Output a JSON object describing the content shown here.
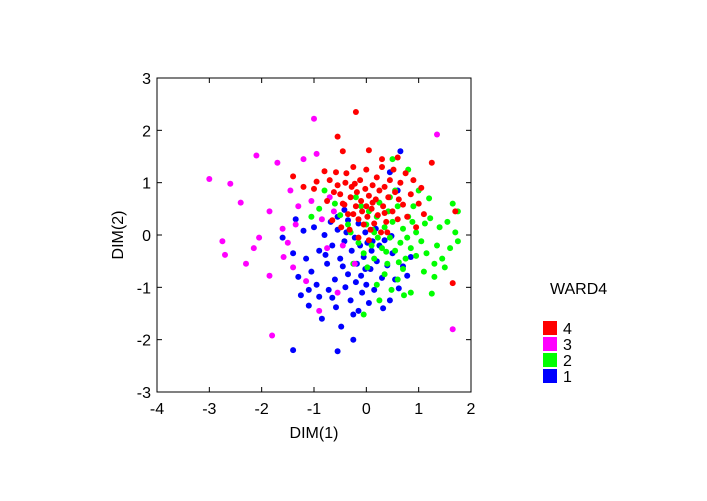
{
  "chart_data": {
    "type": "scatter",
    "xlabel": "DIM(1)",
    "ylabel": "DIM(2)",
    "xlim": [
      -4,
      2
    ],
    "ylim": [
      -3,
      3
    ],
    "xticks": [
      "-4",
      "-3",
      "-2",
      "-1",
      "0",
      "1",
      "2"
    ],
    "yticks": [
      "-3",
      "-2",
      "-1",
      "0",
      "1",
      "2",
      "3"
    ],
    "grid": false,
    "legend": {
      "title": "WARD4",
      "placement": "right",
      "entries": [
        {
          "label": "4",
          "color": "#ff0000"
        },
        {
          "label": "3",
          "color": "#ff00ff"
        },
        {
          "label": "2",
          "color": "#00ff00"
        },
        {
          "label": "1",
          "color": "#0000ff"
        }
      ]
    },
    "series": [
      {
        "name": "4",
        "color": "#ff0000",
        "points": [
          [
            -0.2,
            2.35
          ],
          [
            -0.55,
            1.88
          ],
          [
            -0.45,
            1.6
          ],
          [
            0.05,
            1.62
          ],
          [
            0.3,
            1.45
          ],
          [
            0.6,
            1.48
          ],
          [
            1.25,
            1.38
          ],
          [
            -1.4,
            1.12
          ],
          [
            -1.2,
            0.92
          ],
          [
            -1.0,
            0.88
          ],
          [
            -0.95,
            1.02
          ],
          [
            -0.8,
            1.22
          ],
          [
            -0.75,
            0.65
          ],
          [
            -0.7,
            1.05
          ],
          [
            -0.62,
            0.82
          ],
          [
            -0.58,
            1.2
          ],
          [
            -0.55,
            0.95
          ],
          [
            -0.5,
            0.78
          ],
          [
            -0.45,
            0.6
          ],
          [
            -0.4,
            1.0
          ],
          [
            -0.38,
            1.18
          ],
          [
            -0.35,
            0.4
          ],
          [
            -0.3,
            0.72
          ],
          [
            -0.28,
            0.92
          ],
          [
            -0.25,
            1.3
          ],
          [
            -0.2,
            0.55
          ],
          [
            -0.18,
            0.82
          ],
          [
            -0.15,
            0.3
          ],
          [
            -0.12,
            1.05
          ],
          [
            -0.1,
            0.65
          ],
          [
            -0.08,
            0.45
          ],
          [
            -0.05,
            0.2
          ],
          [
            -0.02,
            0.88
          ],
          [
            0.0,
            0.55
          ],
          [
            0.0,
            1.25
          ],
          [
            0.02,
            0.35
          ],
          [
            0.05,
            0.75
          ],
          [
            0.08,
            0.1
          ],
          [
            0.1,
            0.5
          ],
          [
            0.12,
            0.95
          ],
          [
            0.15,
            0.22
          ],
          [
            0.18,
            0.68
          ],
          [
            0.2,
            1.1
          ],
          [
            0.22,
            0.38
          ],
          [
            0.25,
            0.85
          ],
          [
            0.28,
            0.05
          ],
          [
            0.3,
            1.3
          ],
          [
            0.32,
            0.55
          ],
          [
            0.35,
            0.92
          ],
          [
            0.38,
            0.25
          ],
          [
            0.42,
            0.72
          ],
          [
            0.45,
            1.05
          ],
          [
            0.5,
            0.45
          ],
          [
            0.52,
            1.25
          ],
          [
            0.55,
            0.82
          ],
          [
            0.6,
            0.3
          ],
          [
            0.65,
            1.0
          ],
          [
            0.7,
            0.58
          ],
          [
            0.75,
            1.18
          ],
          [
            0.78,
            0.35
          ],
          [
            0.85,
            0.78
          ],
          [
            0.9,
            1.05
          ],
          [
            0.95,
            0.15
          ],
          [
            1.0,
            0.6
          ],
          [
            1.05,
            0.9
          ],
          [
            1.1,
            0.4
          ],
          [
            -0.65,
            0.28
          ],
          [
            -0.48,
            0.15
          ],
          [
            -0.32,
            0.1
          ],
          [
            -0.15,
            -0.05
          ],
          [
            0.05,
            -0.1
          ],
          [
            0.4,
            0.05
          ],
          [
            -0.25,
            0.4
          ],
          [
            0.12,
            0.62
          ],
          [
            0.35,
            0.42
          ],
          [
            1.7,
            0.45
          ],
          [
            1.65,
            -0.92
          ],
          [
            -0.42,
            0.58
          ],
          [
            -0.22,
            0.98
          ],
          [
            0.62,
            0.68
          ]
        ]
      },
      {
        "name": "3",
        "color": "#ff00ff",
        "points": [
          [
            -3.0,
            1.07
          ],
          [
            -2.6,
            0.98
          ],
          [
            -2.75,
            -0.12
          ],
          [
            -2.7,
            -0.38
          ],
          [
            -2.4,
            0.62
          ],
          [
            -2.3,
            -0.55
          ],
          [
            -2.15,
            -0.25
          ],
          [
            -2.1,
            1.52
          ],
          [
            -2.05,
            -0.05
          ],
          [
            -1.85,
            0.45
          ],
          [
            -1.85,
            -0.78
          ],
          [
            -1.8,
            -1.92
          ],
          [
            -1.7,
            1.38
          ],
          [
            -1.6,
            0.12
          ],
          [
            -1.58,
            -0.42
          ],
          [
            -1.5,
            -0.15
          ],
          [
            -1.45,
            0.85
          ],
          [
            -1.4,
            -0.62
          ],
          [
            -1.35,
            0.2
          ],
          [
            -1.3,
            0.55
          ],
          [
            -1.2,
            1.45
          ],
          [
            -1.0,
            2.22
          ],
          [
            -0.95,
            1.55
          ],
          [
            -0.9,
            -1.45
          ],
          [
            -1.05,
            0.65
          ],
          [
            -0.85,
            0.3
          ],
          [
            -0.75,
            -0.25
          ],
          [
            -0.7,
            0.72
          ],
          [
            -0.55,
            -1.1
          ],
          [
            -0.45,
            -0.2
          ],
          [
            -0.22,
            -0.55
          ],
          [
            1.35,
            1.92
          ],
          [
            1.65,
            -1.8
          ],
          [
            -1.15,
            -0.88
          ],
          [
            -0.62,
            0.45
          ]
        ]
      },
      {
        "name": "2",
        "color": "#00ff00",
        "points": [
          [
            0.5,
            1.45
          ],
          [
            0.8,
            1.25
          ],
          [
            0.55,
            0.85
          ],
          [
            1.2,
            0.7
          ],
          [
            1.65,
            0.6
          ],
          [
            1.75,
            0.45
          ],
          [
            1.55,
            0.25
          ],
          [
            1.4,
            0.15
          ],
          [
            1.7,
            0.05
          ],
          [
            1.75,
            -0.12
          ],
          [
            1.6,
            -0.25
          ],
          [
            1.45,
            -0.45
          ],
          [
            1.3,
            -0.55
          ],
          [
            1.15,
            -0.35
          ],
          [
            1.05,
            -0.12
          ],
          [
            0.95,
            0.05
          ],
          [
            0.85,
            -0.25
          ],
          [
            0.8,
            0.35
          ],
          [
            0.75,
            -0.45
          ],
          [
            0.7,
            0.12
          ],
          [
            0.65,
            -0.15
          ],
          [
            0.6,
            0.55
          ],
          [
            0.55,
            -0.3
          ],
          [
            0.5,
            0.25
          ],
          [
            0.45,
            -0.05
          ],
          [
            0.42,
            0.45
          ],
          [
            0.4,
            -0.55
          ],
          [
            0.35,
            0.15
          ],
          [
            0.3,
            -0.25
          ],
          [
            0.25,
            0.62
          ],
          [
            0.22,
            -0.05
          ],
          [
            0.2,
            0.35
          ],
          [
            0.15,
            -0.45
          ],
          [
            0.12,
            0.1
          ],
          [
            0.1,
            -0.2
          ],
          [
            0.05,
            0.45
          ],
          [
            0.02,
            -0.62
          ],
          [
            0.0,
            0.2
          ],
          [
            -0.05,
            -0.35
          ],
          [
            -0.1,
            0.55
          ],
          [
            -0.15,
            -0.15
          ],
          [
            -0.2,
            0.72
          ],
          [
            -0.25,
            -0.55
          ],
          [
            -0.3,
            0.05
          ],
          [
            -0.5,
            0.38
          ],
          [
            -0.6,
            0.6
          ],
          [
            -0.8,
            0.85
          ],
          [
            -0.9,
            0.5
          ],
          [
            -1.05,
            0.35
          ],
          [
            0.9,
            0.55
          ],
          [
            1.0,
            0.85
          ],
          [
            1.1,
            -0.7
          ],
          [
            1.25,
            -1.12
          ],
          [
            0.85,
            -1.1
          ],
          [
            0.72,
            -1.15
          ],
          [
            0.6,
            -0.85
          ],
          [
            0.35,
            -0.75
          ],
          [
            0.2,
            -0.95
          ],
          [
            -0.05,
            -1.52
          ],
          [
            0.25,
            -1.25
          ],
          [
            0.48,
            -1.05
          ],
          [
            0.7,
            -0.65
          ],
          [
            1.3,
            -0.8
          ],
          [
            1.5,
            -0.62
          ],
          [
            0.95,
            -0.4
          ],
          [
            0.88,
            0.25
          ],
          [
            1.22,
            0.32
          ],
          [
            0.45,
            0.72
          ],
          [
            0.62,
            -0.52
          ],
          [
            0.38,
            -0.32
          ],
          [
            0.78,
            -0.05
          ],
          [
            1.12,
            0.22
          ],
          [
            1.35,
            -0.2
          ],
          [
            -0.35,
            0.2
          ],
          [
            0.15,
            0.05
          ]
        ]
      },
      {
        "name": "1",
        "color": "#0000ff",
        "points": [
          [
            0.65,
            1.6
          ],
          [
            0.45,
            1.2
          ],
          [
            0.6,
            0.85
          ],
          [
            -1.4,
            -2.2
          ],
          [
            -0.55,
            -2.22
          ],
          [
            -1.6,
            -0.05
          ],
          [
            -1.4,
            -0.35
          ],
          [
            -1.35,
            0.3
          ],
          [
            -1.3,
            -0.8
          ],
          [
            -1.25,
            -1.15
          ],
          [
            -1.2,
            0.08
          ],
          [
            -1.15,
            -0.45
          ],
          [
            -1.1,
            -1.35
          ],
          [
            -1.05,
            -0.7
          ],
          [
            -1.0,
            0.15
          ],
          [
            -0.95,
            -0.95
          ],
          [
            -0.9,
            -0.3
          ],
          [
            -0.85,
            -1.6
          ],
          [
            -0.8,
            0.0
          ],
          [
            -0.75,
            -0.55
          ],
          [
            -0.72,
            -1.05
          ],
          [
            -0.68,
            0.25
          ],
          [
            -0.65,
            -0.2
          ],
          [
            -0.6,
            -0.85
          ],
          [
            -0.58,
            -1.38
          ],
          [
            -0.55,
            0.1
          ],
          [
            -0.5,
            -0.45
          ],
          [
            -0.48,
            -1.75
          ],
          [
            -0.45,
            -0.6
          ],
          [
            -0.42,
            -0.12
          ],
          [
            -0.4,
            -1.0
          ],
          [
            -0.38,
            0.05
          ],
          [
            -0.35,
            -0.75
          ],
          [
            -0.3,
            -1.25
          ],
          [
            -0.28,
            -0.3
          ],
          [
            -0.25,
            -2.0
          ],
          [
            -0.22,
            -0.05
          ],
          [
            -0.2,
            -0.9
          ],
          [
            -0.18,
            -0.55
          ],
          [
            -0.15,
            -1.45
          ],
          [
            -0.12,
            -0.2
          ],
          [
            -0.1,
            -0.78
          ],
          [
            -0.08,
            -1.1
          ],
          [
            -0.05,
            -0.42
          ],
          [
            -0.02,
            0.05
          ],
          [
            0.0,
            -0.95
          ],
          [
            0.02,
            -0.15
          ],
          [
            0.05,
            -1.3
          ],
          [
            0.08,
            -0.65
          ],
          [
            0.1,
            -0.3
          ],
          [
            0.15,
            -1.05
          ],
          [
            0.18,
            0.12
          ],
          [
            0.2,
            -0.5
          ],
          [
            0.25,
            -0.2
          ],
          [
            0.3,
            -0.82
          ],
          [
            0.35,
            -0.1
          ],
          [
            0.4,
            -0.58
          ],
          [
            0.45,
            -1.25
          ],
          [
            0.5,
            -0.35
          ],
          [
            0.55,
            -0.85
          ],
          [
            0.62,
            -1.02
          ],
          [
            0.7,
            -0.6
          ],
          [
            0.78,
            -0.78
          ],
          [
            0.85,
            -0.42
          ],
          [
            -0.55,
            0.35
          ],
          [
            -0.35,
            0.28
          ],
          [
            -0.15,
            0.22
          ],
          [
            -0.65,
            -1.2
          ],
          [
            -0.9,
            -1.18
          ],
          [
            -1.1,
            -1.05
          ],
          [
            -0.78,
            -0.38
          ],
          [
            0.12,
            -0.12
          ],
          [
            -0.25,
            -1.52
          ],
          [
            0.32,
            -1.4
          ],
          [
            -0.42,
            0.48
          ],
          [
            -0.02,
            -0.65
          ],
          [
            0.48,
            -0.02
          ]
        ]
      }
    ]
  }
}
